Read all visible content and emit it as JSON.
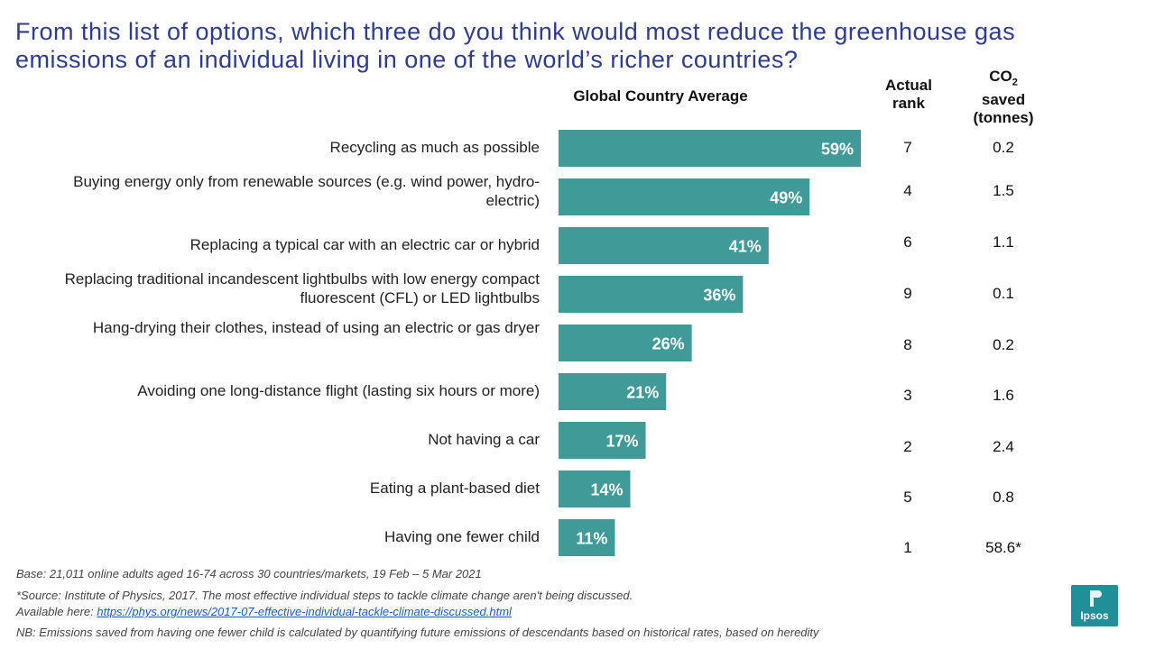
{
  "title": "From this list of options, which three do you think would most reduce the greenhouse gas emissions of an individual living in one of the world’s richer countries?",
  "headers": {
    "series": "Global Country Average",
    "rank_line1": "Actual",
    "rank_line2": "rank",
    "co2_main": "CO",
    "co2_sub": "2",
    "co2_line2": "saved",
    "co2_line3": "(tonnes)"
  },
  "chart_data": {
    "type": "bar",
    "orientation": "horizontal",
    "series": [
      {
        "name": "Global Country Average",
        "values": [
          59,
          49,
          41,
          36,
          26,
          21,
          17,
          14,
          11
        ]
      }
    ],
    "categories": [
      "Recycling as much as possible",
      "Buying energy only from renewable sources (e.g. wind power, hydro-electric)",
      "Replacing a typical car with an electric car or hybrid",
      "Replacing traditional incandescent lightbulbs with low energy compact fluorescent (CFL) or LED lightbulbs",
      "Hang-drying their clothes, instead of using an electric or gas dryer",
      "Avoiding one long-distance flight (lasting six hours or more)",
      "Not having a car",
      "Eating a plant-based diet",
      "Having one fewer child"
    ],
    "value_labels": [
      "59%",
      "49%",
      "41%",
      "36%",
      "26%",
      "21%",
      "17%",
      "14%",
      "11%"
    ],
    "bar_color": "#3f9a98",
    "actual_rank": [
      "7",
      "4",
      "6",
      "9",
      "8",
      "3",
      "2",
      "5",
      "1"
    ],
    "co2_saved": [
      "0.2",
      "1.5",
      "1.1",
      "0.1",
      "0.2",
      "1.6",
      "2.4",
      "0.8",
      "58.6*"
    ],
    "xlim": [
      0,
      59
    ]
  },
  "footnotes": {
    "base": "Base: 21,011 online adults aged 16-74 across 30 countries/markets,  19 Feb – 5 Mar 2021",
    "source": "*Source: Institute of Physics, 2017. The most effective individual steps to tackle climate change aren't being discussed.",
    "available_prefix": "Available here: ",
    "link": "https://phys.org/news/2017-07-effective-individual-tackle-climate-discussed.html",
    "nb": "NB: Emissions saved from having one fewer child is calculated by quantifying future emissions of descendants based on historical rates, based on heredity"
  },
  "logo": {
    "text": "Ipsos",
    "color": "#1f8f98"
  }
}
